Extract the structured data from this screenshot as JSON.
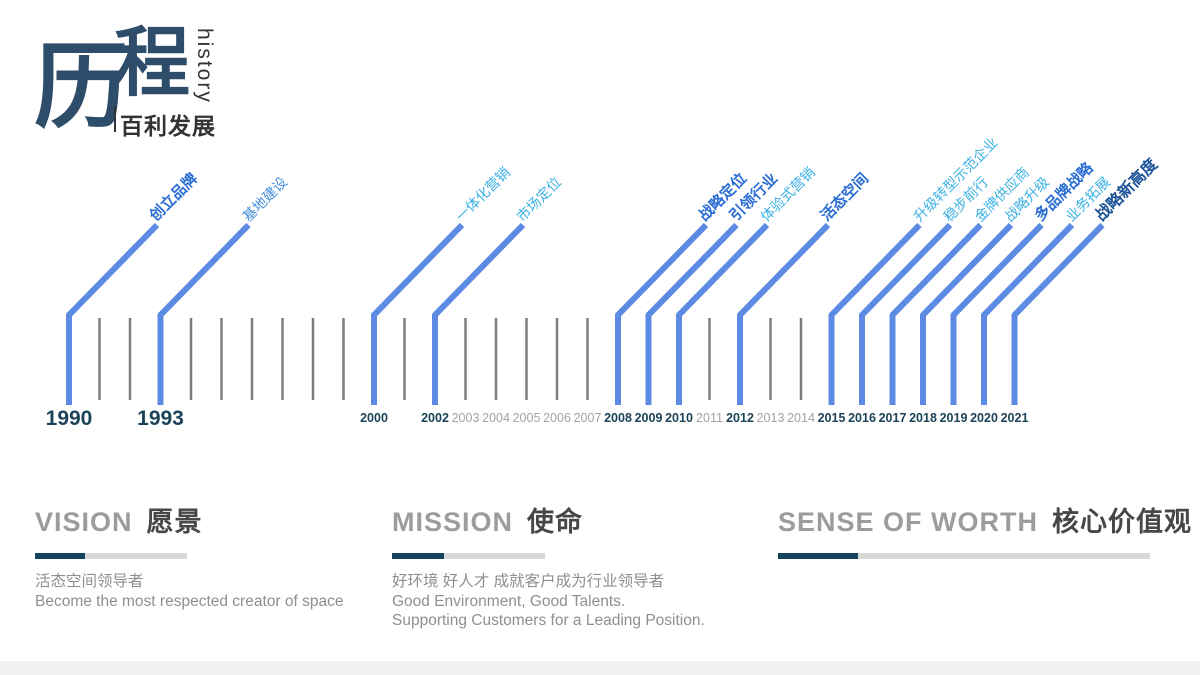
{
  "title": {
    "main_char_1": "历",
    "main_char_2": "程",
    "vertical_label": "history",
    "subtitle": "百利发展"
  },
  "colors": {
    "title_navy": "#2e4d6b",
    "title_dark": "#333333",
    "line_blue": "#5d8be4",
    "tick_gray": "#7d7d7d",
    "year_navy": "#1c4359",
    "year_gray": "#a3a3a3",
    "event_strong": "#2a6dd4",
    "event_medium": "#4a90da",
    "event_cyan": "#3cb1e4",
    "event_navy": "#1d5499",
    "header_gray": "#9c9c9c",
    "header_dark": "#474747",
    "bar_navy": "#14455c",
    "bar_gray": "#d9d9d9",
    "body_gray": "#8f8f8f",
    "footer_gray": "#f1f1f1"
  },
  "timeline": {
    "years": [
      {
        "year": 1990,
        "label_style": "major",
        "event": "创立品牌",
        "event_style": "strong"
      },
      {
        "year": 1991,
        "label_style": "none",
        "event": null
      },
      {
        "year": 1992,
        "label_style": "none",
        "event": null
      },
      {
        "year": 1993,
        "label_style": "major",
        "event": "基地建设",
        "event_style": "medium"
      },
      {
        "year": 1994,
        "label_style": "none",
        "event": null
      },
      {
        "year": 1995,
        "label_style": "none",
        "event": null
      },
      {
        "year": 1996,
        "label_style": "none",
        "event": null
      },
      {
        "year": 1997,
        "label_style": "none",
        "event": null
      },
      {
        "year": 1998,
        "label_style": "none",
        "event": null
      },
      {
        "year": 1999,
        "label_style": "none",
        "event": null
      },
      {
        "year": 2000,
        "label_style": "bold",
        "event": "一体化营销",
        "event_style": "cyan"
      },
      {
        "year": 2001,
        "label_style": "none",
        "event": null
      },
      {
        "year": 2002,
        "label_style": "bold",
        "event": "市场定位",
        "event_style": "cyan"
      },
      {
        "year": 2003,
        "label_style": "gray",
        "event": null
      },
      {
        "year": 2004,
        "label_style": "gray",
        "event": null
      },
      {
        "year": 2005,
        "label_style": "gray",
        "event": null
      },
      {
        "year": 2006,
        "label_style": "gray",
        "event": null
      },
      {
        "year": 2007,
        "label_style": "gray",
        "event": null
      },
      {
        "year": 2008,
        "label_style": "bold",
        "event": "战略定位",
        "event_style": "strong"
      },
      {
        "year": 2009,
        "label_style": "bold",
        "event": "引领行业",
        "event_style": "strong"
      },
      {
        "year": 2010,
        "label_style": "bold",
        "event": "体验式营销",
        "event_style": "cyan"
      },
      {
        "year": 2011,
        "label_style": "gray",
        "event": null
      },
      {
        "year": 2012,
        "label_style": "bold",
        "event": "活态空间",
        "event_style": "strong"
      },
      {
        "year": 2013,
        "label_style": "gray",
        "event": null
      },
      {
        "year": 2014,
        "label_style": "gray",
        "event": null
      },
      {
        "year": 2015,
        "label_style": "bold",
        "event": "升级转型示范企业",
        "event_style": "cyan"
      },
      {
        "year": 2016,
        "label_style": "bold",
        "event": "稳步前行",
        "event_style": "cyan"
      },
      {
        "year": 2017,
        "label_style": "bold",
        "event": "金牌供应商",
        "event_style": "cyan"
      },
      {
        "year": 2018,
        "label_style": "bold",
        "event": "战略升级",
        "event_style": "cyan"
      },
      {
        "year": 2019,
        "label_style": "bold",
        "event": "多品牌战略",
        "event_style": "strong"
      },
      {
        "year": 2020,
        "label_style": "bold",
        "event": "业务拓展",
        "event_style": "cyan"
      },
      {
        "year": 2021,
        "label_style": "bold",
        "event": "战略新高度",
        "event_style": "navy"
      }
    ]
  },
  "sections": [
    {
      "title_en": "VISION",
      "title_cn": "愿景",
      "lines": [
        "活态空间领导者",
        "Become the most respected creator of space"
      ]
    },
    {
      "title_en": "MISSION",
      "title_cn": "使命",
      "lines": [
        "好环境 好人才 成就客户成为行业领导者",
        "Good Environment, Good Talents.",
        "Supporting Customers for a Leading Position."
      ]
    },
    {
      "title_en": "SENSE OF WORTH",
      "title_cn": "核心价值观",
      "lines": []
    }
  ]
}
